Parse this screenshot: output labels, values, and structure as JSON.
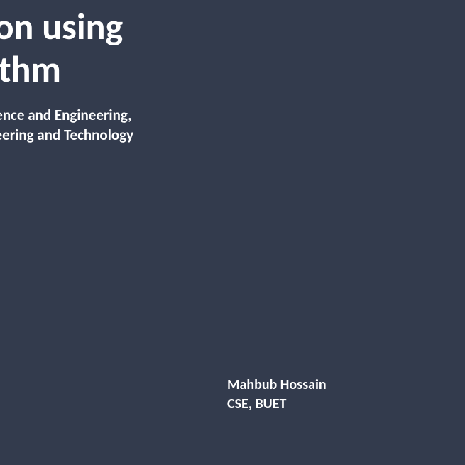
{
  "slide": {
    "title_line1": "etection using",
    "title_line2": " Algorithm",
    "subtitle_line1": "mputer Science and Engineering,",
    "subtitle_line2": "ty of Engineering and Technology",
    "author_name": "Mahbub Hossain",
    "author_affiliation": "CSE, BUET",
    "background_color": "#333b4d",
    "text_color": "#ffffff",
    "title_fontsize": 52,
    "subtitle_fontsize": 21,
    "author_fontsize": 20
  }
}
